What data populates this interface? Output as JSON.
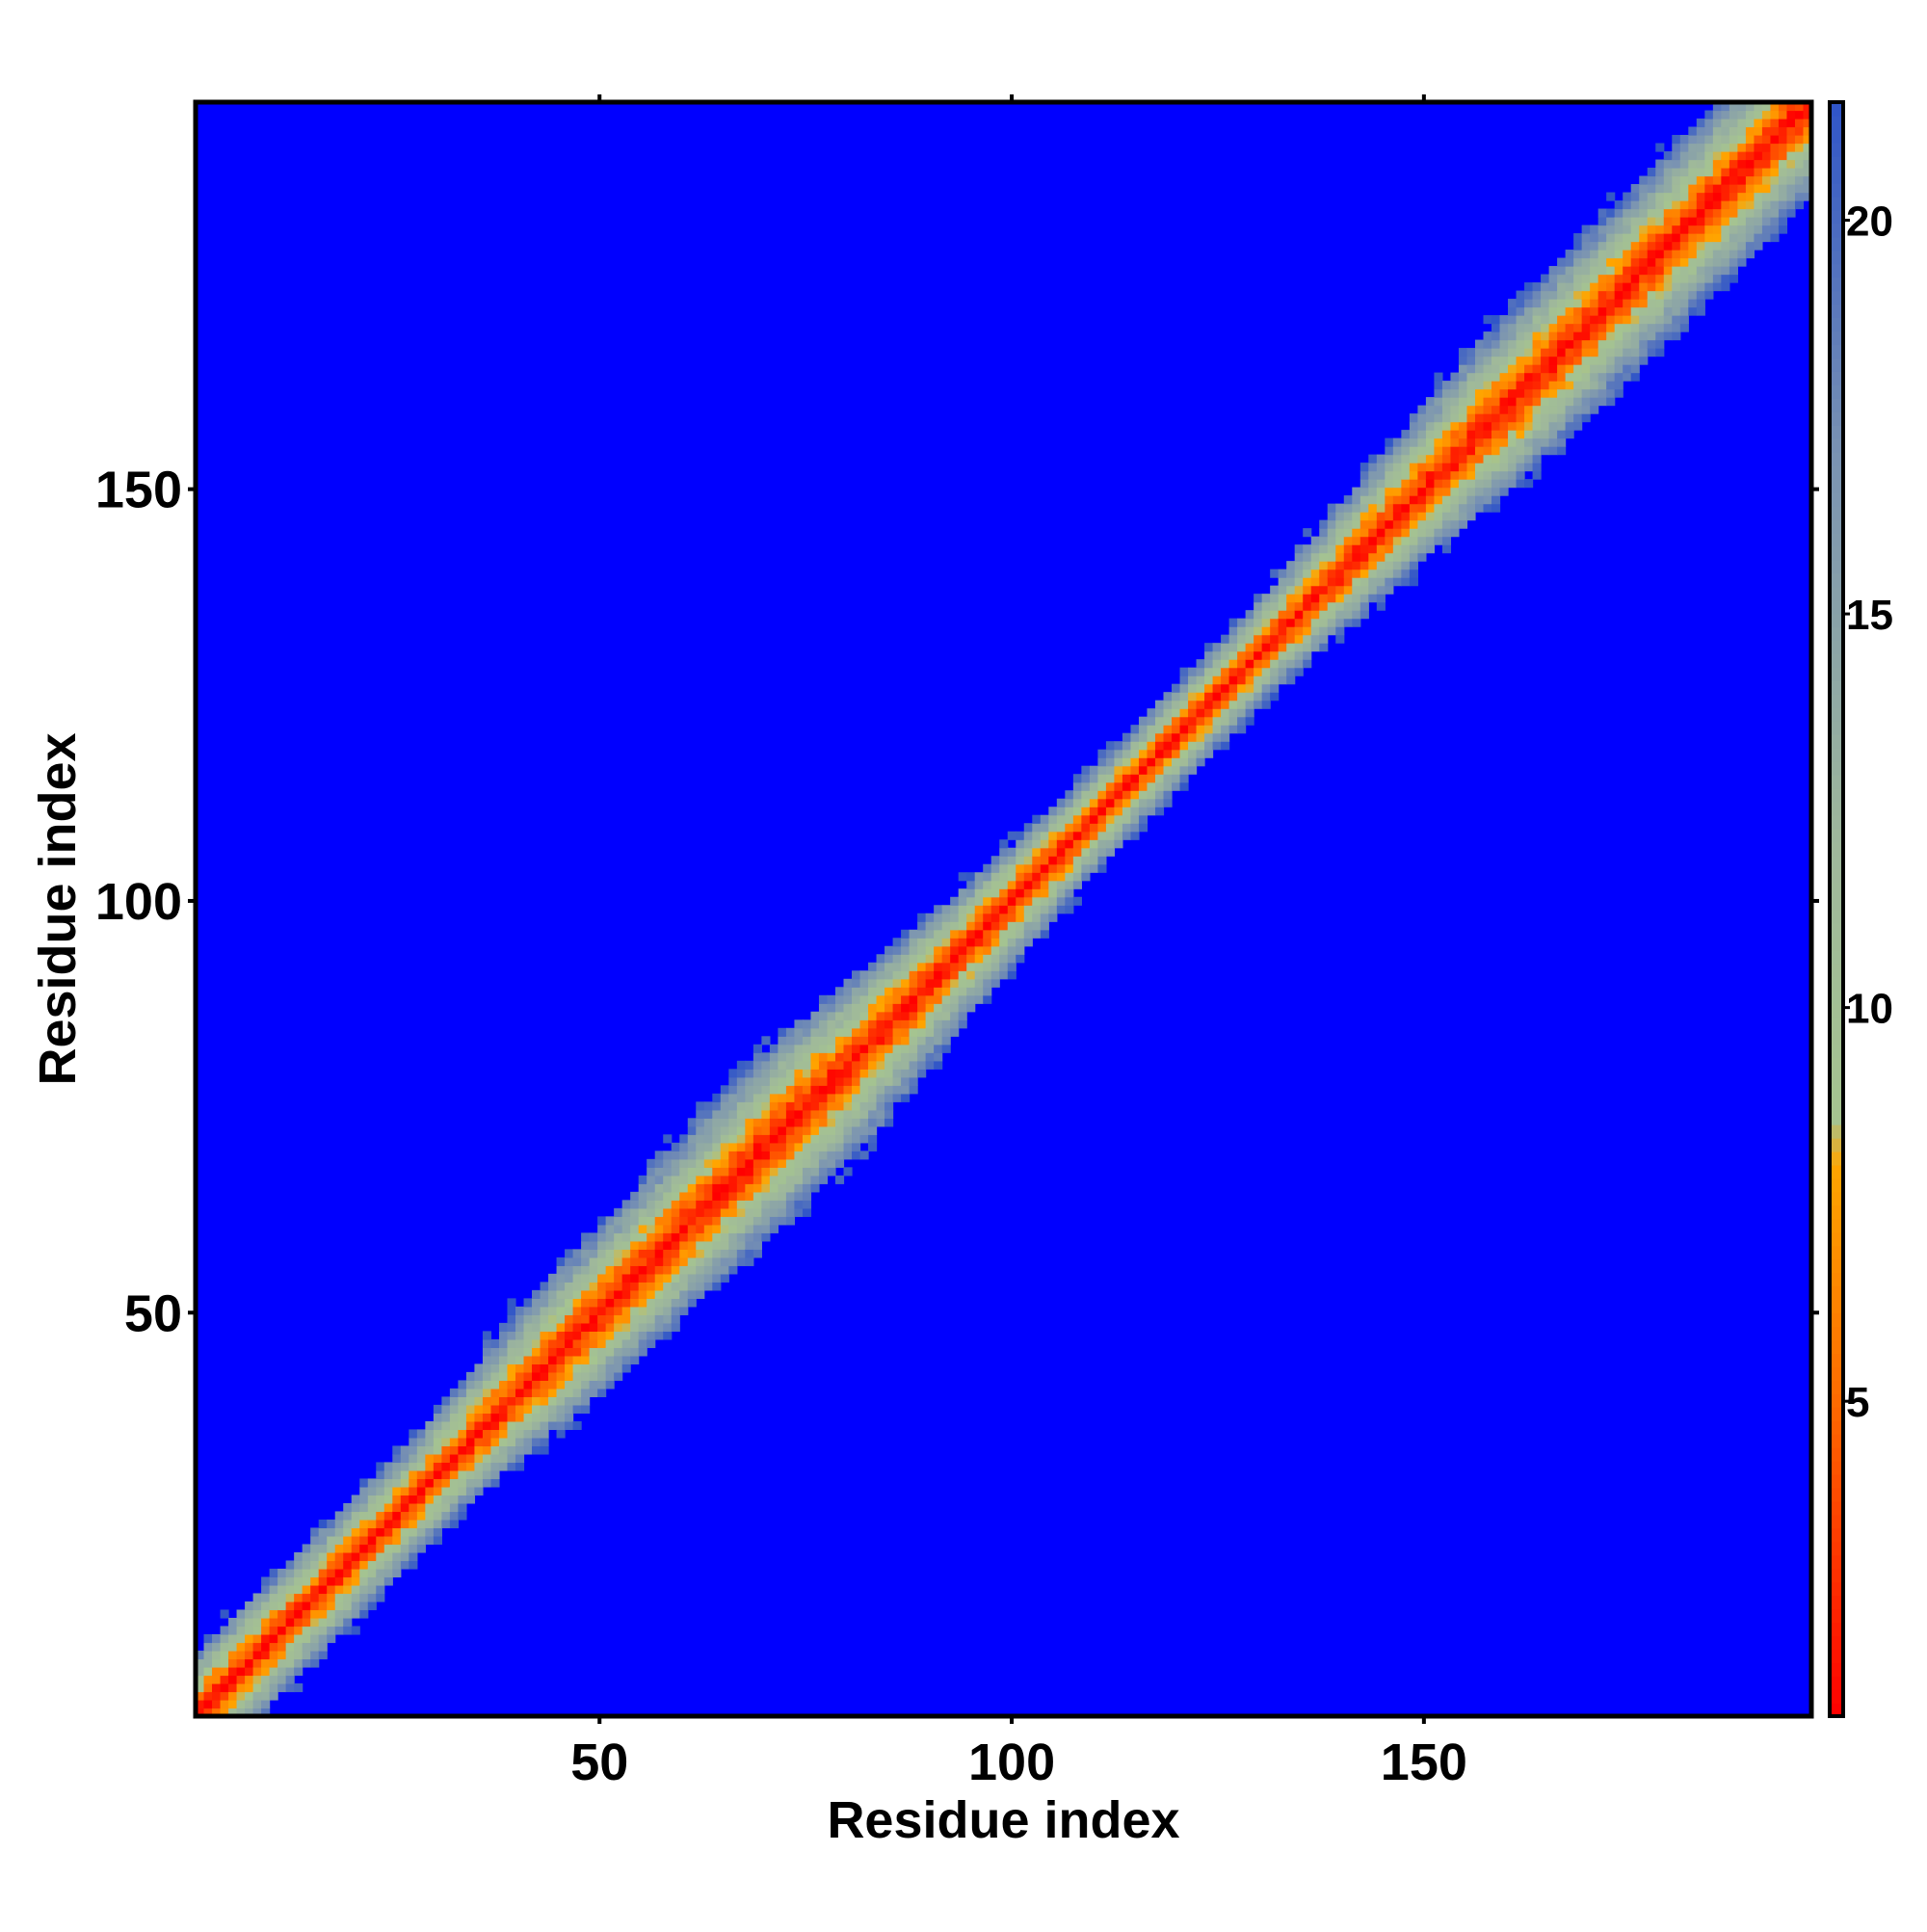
{
  "chart_data": {
    "type": "heatmap",
    "title": "",
    "xlabel": "Residue index",
    "ylabel": "Residue index",
    "n_residues": 197,
    "xlim": [
      1,
      197
    ],
    "ylim": [
      1,
      197
    ],
    "x_ticks": [
      50,
      100,
      150
    ],
    "y_ticks": [
      50,
      100,
      150
    ],
    "colorbar": {
      "range": [
        1,
        21.5
      ],
      "ticks": [
        5,
        10,
        15,
        20
      ],
      "stops": [
        {
          "value": 1,
          "color": "#ff0000"
        },
        {
          "value": 5,
          "color": "#ff6a00"
        },
        {
          "value": 8,
          "color": "#ffa500"
        },
        {
          "value": 8.6,
          "color": "#a5c490"
        },
        {
          "value": 12,
          "color": "#9fb89b"
        },
        {
          "value": 17,
          "color": "#7a93b2"
        },
        {
          "value": 21.5,
          "color": "#3055c8"
        }
      ],
      "cutoff_color": "#0000ff"
    },
    "description_values": {
      "diagonal_value": 1,
      "band_halfwidth_profile": [
        {
          "residue": 1,
          "halfwidth": 9
        },
        {
          "residue": 30,
          "halfwidth": 8
        },
        {
          "residue": 45,
          "halfwidth": 11
        },
        {
          "residue": 75,
          "halfwidth": 13
        },
        {
          "residue": 95,
          "halfwidth": 9
        },
        {
          "residue": 110,
          "halfwidth": 7
        },
        {
          "residue": 130,
          "halfwidth": 7
        },
        {
          "residue": 160,
          "halfwidth": 12
        },
        {
          "residue": 190,
          "halfwidth": 12
        }
      ],
      "background_value": 22
    }
  }
}
